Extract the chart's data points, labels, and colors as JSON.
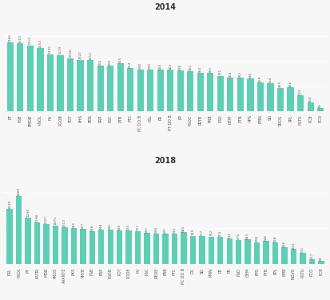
{
  "chart2014": {
    "title": "2014",
    "categories": [
      "PT",
      "PSB",
      "PMDB",
      "PSOL",
      "PV",
      "PGOB",
      "PDT",
      "PHS",
      "PEN",
      "PRP",
      "PSC",
      "PTB",
      "PTC",
      "PC DO B",
      "PSL",
      "PR",
      "PT DO B",
      "PP",
      "PSOC",
      "PRTB",
      "PRB",
      "PSD",
      "DEM",
      "PTN",
      "PPS",
      "PMN",
      "SD",
      "PROS",
      "PPL",
      "PSTU",
      "PCB",
      "PCO"
    ],
    "values": [
      1366,
      1353,
      1312,
      1253,
      1135,
      1119,
      1058,
      1022,
      1012,
      900,
      900,
      955,
      854,
      830,
      832,
      824,
      822,
      808,
      801,
      764,
      761,
      701,
      668,
      662,
      646,
      569,
      554,
      465,
      466,
      310,
      168,
      49
    ]
  },
  "chart2018": {
    "title": "2018",
    "categories": [
      "PSL",
      "PSOL",
      "PT",
      "PATRI",
      "MDB",
      "PROS",
      "AVANTE",
      "PKS",
      "PRYB",
      "PSB",
      "PRP",
      "PSDB",
      "POT",
      "PODE",
      "PV",
      "PSC",
      "REDE",
      "PRB",
      "PTC",
      "PC DO B",
      "DC",
      "SD",
      "PMN",
      "PP",
      "PR",
      "PSD",
      "DEM",
      "PPS",
      "PTB",
      "PPL",
      "PMB",
      "NOVO",
      "PSTU",
      "PCO",
      "PCB"
    ],
    "values": [
      1528,
      1889,
      1294,
      1148,
      1107,
      1075,
      1013,
      991,
      977,
      908,
      948,
      946,
      936,
      925,
      917,
      861,
      849,
      847,
      832,
      885,
      785,
      777,
      762,
      753,
      710,
      676,
      683,
      608,
      646,
      588,
      456,
      414,
      311,
      127,
      93
    ]
  },
  "bar_color": "#5ecfb5",
  "background_color": "#f7f7f7",
  "title_fontsize": 7,
  "label_fontsize": 3.5,
  "value_fontsize": 3.2
}
